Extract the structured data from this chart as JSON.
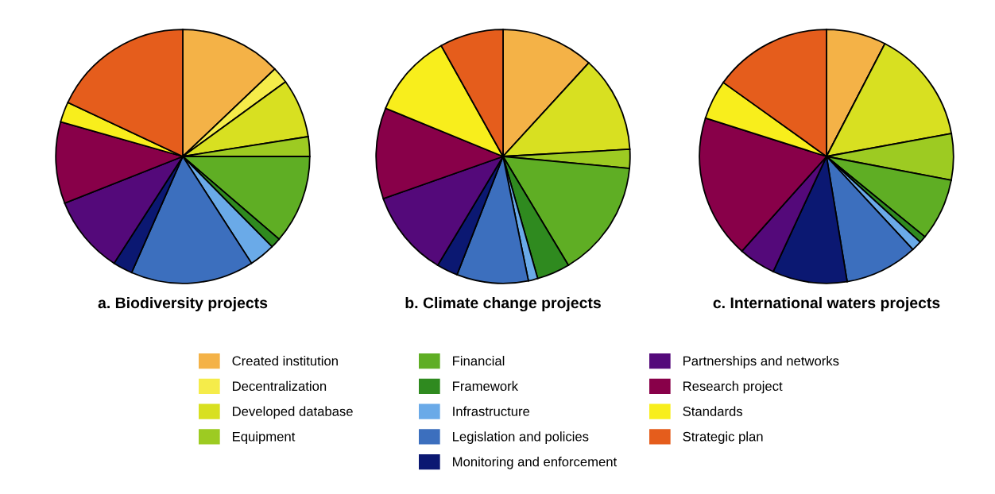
{
  "chart_data": [
    {
      "type": "pie",
      "title": "a. Biodiversity projects",
      "legend": "bottom",
      "categories": [
        "Created institution",
        "Decentralization",
        "Developed database",
        "Equipment",
        "Financial",
        "Framework",
        "Infrastructure",
        "Legislation and policies",
        "Monitoring and enforcement",
        "Partnerships and networks",
        "Research project",
        "Standards",
        "Strategic plan"
      ],
      "values": [
        12.9,
        2.1,
        7.5,
        2.5,
        11.3,
        1.3,
        3.3,
        15.7,
        2.5,
        9.9,
        10.4,
        2.6,
        18.0
      ],
      "colors": [
        "#f4b247",
        "#f5ec4a",
        "#d8e021",
        "#9dcb22",
        "#5fae24",
        "#2f8a1f",
        "#6aaae8",
        "#3c6fbe",
        "#0b1872",
        "#54097a",
        "#880049",
        "#f8ee1c",
        "#e55d1c"
      ]
    },
    {
      "type": "pie",
      "title": "b. Climate change projects",
      "categories": [
        null,
        null,
        null,
        null,
        null,
        null,
        null,
        null,
        null,
        null,
        null,
        null,
        null
      ],
      "values": [
        11.8,
        0,
        12.3,
        2.4,
        14.9,
        4.2,
        1.2,
        9.1,
        2.7,
        11.0,
        11.6,
        10.7,
        8.1
      ],
      "colors": [
        "#f4b247",
        "#f5ec4a",
        "#d8e021",
        "#9dcb22",
        "#5fae24",
        "#2f8a1f",
        "#6aaae8",
        "#3c6fbe",
        "#0b1872",
        "#54097a",
        "#880049",
        "#f8ee1c",
        "#e55d1c"
      ]
    },
    {
      "type": "pie",
      "title": "c. International waters projects",
      "categories": [
        null,
        null,
        null,
        null,
        null,
        null,
        null,
        null,
        null,
        null,
        null,
        null,
        null
      ],
      "values": [
        7.6,
        0,
        14.5,
        5.9,
        7.9,
        0.9,
        1.3,
        9.3,
        9.5,
        4.7,
        18.3,
        5.0,
        15.1
      ],
      "colors": [
        "#f4b247",
        "#f5ec4a",
        "#d8e021",
        "#9dcb22",
        "#5fae24",
        "#2f8a1f",
        "#6aaae8",
        "#3c6fbe",
        "#0b1872",
        "#54097a",
        "#880049",
        "#f8ee1c",
        "#e55d1c"
      ]
    }
  ]
}
